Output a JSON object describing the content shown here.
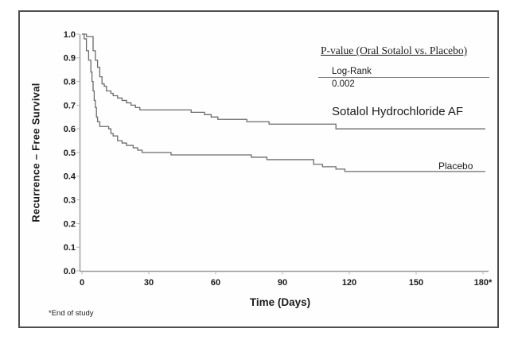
{
  "legend": {
    "heading": "P-value (Oral Sotalol vs. Placebo)",
    "test_label": "Log-Rank",
    "p_value": "0.002"
  },
  "series_labels": {
    "sotalol": "Sotalol Hydrochloride AF",
    "placebo": "Placebo"
  },
  "footnote": "*End of study",
  "chart_data": {
    "type": "line",
    "subtype": "kaplan-meier-step",
    "title": "",
    "xlabel": "Time (Days)",
    "ylabel": "Recurrence – Free Survival",
    "xlim": [
      0,
      180
    ],
    "ylim": [
      0.0,
      1.0
    ],
    "grid": false,
    "legend_position": "top-right",
    "annotations": [
      "P-value (Oral Sotalol vs. Placebo)",
      "Log-Rank",
      "0.002",
      "*End of study"
    ],
    "x_ticks": [
      {
        "value": 0,
        "label": "0"
      },
      {
        "value": 30,
        "label": "30"
      },
      {
        "value": 60,
        "label": "60"
      },
      {
        "value": 90,
        "label": "90"
      },
      {
        "value": 120,
        "label": "120"
      },
      {
        "value": 150,
        "label": "150"
      },
      {
        "value": 180,
        "label": "180*"
      }
    ],
    "y_ticks": [
      {
        "value": 0.0,
        "label": "0.0"
      },
      {
        "value": 0.1,
        "label": "0.1"
      },
      {
        "value": 0.2,
        "label": "0.2"
      },
      {
        "value": 0.3,
        "label": "0.3"
      },
      {
        "value": 0.4,
        "label": "0.4"
      },
      {
        "value": 0.5,
        "label": "0.5"
      },
      {
        "value": 0.6,
        "label": "0.6"
      },
      {
        "value": 0.7,
        "label": "0.7"
      },
      {
        "value": 0.8,
        "label": "0.8"
      },
      {
        "value": 0.9,
        "label": "0.9"
      },
      {
        "value": 1.0,
        "label": "1.0"
      }
    ],
    "line_color": "#6b6b6b",
    "axis_color": "#9a9a9a",
    "series": [
      {
        "name": "Sotalol Hydrochloride AF",
        "points": [
          [
            0,
            1.0
          ],
          [
            2,
            0.99
          ],
          [
            5,
            0.93
          ],
          [
            6,
            0.89
          ],
          [
            7,
            0.86
          ],
          [
            8,
            0.82
          ],
          [
            9,
            0.79
          ],
          [
            10,
            0.78
          ],
          [
            11,
            0.76
          ],
          [
            13,
            0.75
          ],
          [
            14,
            0.74
          ],
          [
            16,
            0.73
          ],
          [
            18,
            0.72
          ],
          [
            20,
            0.71
          ],
          [
            22,
            0.7
          ],
          [
            24,
            0.69
          ],
          [
            26,
            0.68
          ],
          [
            49,
            0.67
          ],
          [
            55,
            0.66
          ],
          [
            58,
            0.65
          ],
          [
            61,
            0.64
          ],
          [
            74,
            0.63
          ],
          [
            84,
            0.62
          ],
          [
            114,
            0.6
          ],
          [
            180,
            0.6
          ]
        ]
      },
      {
        "name": "Placebo",
        "points": [
          [
            0,
            1.0
          ],
          [
            1,
            0.98
          ],
          [
            2,
            0.93
          ],
          [
            3,
            0.89
          ],
          [
            4,
            0.84
          ],
          [
            4.5,
            0.8
          ],
          [
            5,
            0.76
          ],
          [
            5.5,
            0.72
          ],
          [
            6,
            0.69
          ],
          [
            6.5,
            0.65
          ],
          [
            7,
            0.63
          ],
          [
            8,
            0.61
          ],
          [
            12,
            0.6
          ],
          [
            13,
            0.58
          ],
          [
            14,
            0.57
          ],
          [
            16,
            0.55
          ],
          [
            18,
            0.54
          ],
          [
            20,
            0.53
          ],
          [
            23,
            0.52
          ],
          [
            25,
            0.51
          ],
          [
            27,
            0.5
          ],
          [
            40,
            0.49
          ],
          [
            76,
            0.48
          ],
          [
            83,
            0.47
          ],
          [
            104,
            0.45
          ],
          [
            108,
            0.44
          ],
          [
            114,
            0.43
          ],
          [
            118,
            0.42
          ],
          [
            180,
            0.42
          ]
        ]
      }
    ]
  }
}
